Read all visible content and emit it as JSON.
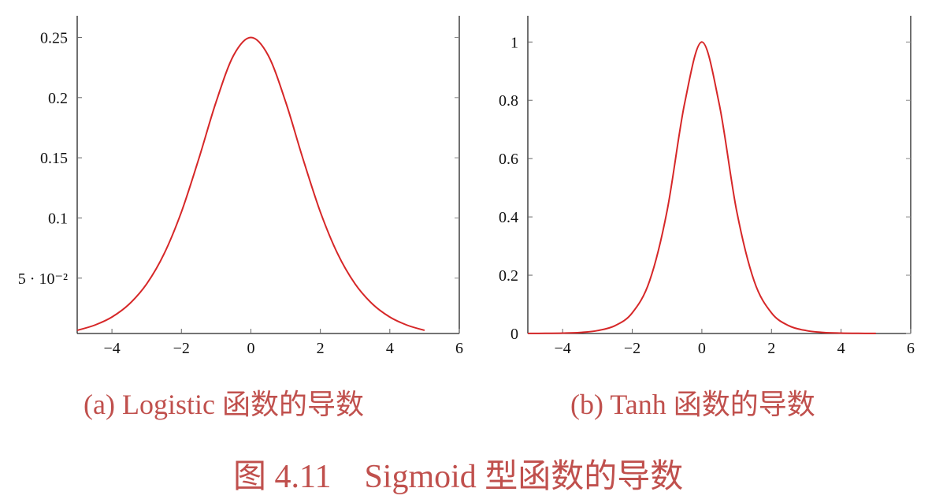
{
  "figure_caption": "图 4.11　Sigmoid 型函数的导数",
  "chart_data": [
    {
      "type": "line",
      "caption": "(a) Logistic 函数的导数",
      "xlim": [
        -5,
        6
      ],
      "ylim": [
        0.004,
        0.268
      ],
      "x_ticks": [
        -4,
        -2,
        0,
        2,
        4,
        6
      ],
      "x_tick_labels": [
        "−4",
        "−2",
        "0",
        "2",
        "4",
        "6"
      ],
      "y_ticks": [
        0.05,
        0.1,
        0.15,
        0.2,
        0.25
      ],
      "y_tick_labels": [
        "5 · 10⁻²",
        "0.1",
        "0.15",
        "0.2",
        "0.25"
      ],
      "grid": false,
      "color": "#d62728",
      "series": [
        {
          "x": [
            -5,
            -4.5,
            -4,
            -3.5,
            -3,
            -2.5,
            -2,
            -1.5,
            -1,
            -0.5,
            0,
            0.5,
            1,
            1.5,
            2,
            2.5,
            3,
            3.5,
            4,
            4.5,
            5
          ],
          "values": [
            0.0066,
            0.0109,
            0.0177,
            0.0285,
            0.0452,
            0.0701,
            0.105,
            0.1491,
            0.1966,
            0.235,
            0.25,
            0.235,
            0.1966,
            0.1491,
            0.105,
            0.0701,
            0.0452,
            0.0285,
            0.0177,
            0.0109,
            0.0066
          ]
        }
      ]
    },
    {
      "type": "line",
      "caption": "(b) Tanh 函数的导数",
      "xlim": [
        -5,
        6
      ],
      "ylim": [
        0,
        1.09
      ],
      "x_ticks": [
        -4,
        -2,
        0,
        2,
        4,
        6
      ],
      "x_tick_labels": [
        "−4",
        "−2",
        "0",
        "2",
        "4",
        "6"
      ],
      "y_ticks": [
        0,
        0.2,
        0.4,
        0.6,
        0.8,
        1
      ],
      "y_tick_labels": [
        "0",
        "0.2",
        "0.4",
        "0.6",
        "0.8",
        "1"
      ],
      "grid": false,
      "color": "#d62728",
      "series": [
        {
          "x": [
            -5,
            -4.5,
            -4,
            -3.5,
            -3,
            -2.5,
            -2,
            -1.5,
            -1,
            -0.5,
            0,
            0.5,
            1,
            1.5,
            2,
            2.5,
            3,
            3.5,
            4,
            4.5,
            5
          ],
          "values": [
            0.0002,
            0.0005,
            0.0013,
            0.0036,
            0.0099,
            0.0266,
            0.0707,
            0.1807,
            0.42,
            0.7864,
            1,
            0.7864,
            0.42,
            0.1807,
            0.0707,
            0.0266,
            0.0099,
            0.0036,
            0.0013,
            0.0005,
            0.0002
          ]
        }
      ]
    }
  ]
}
